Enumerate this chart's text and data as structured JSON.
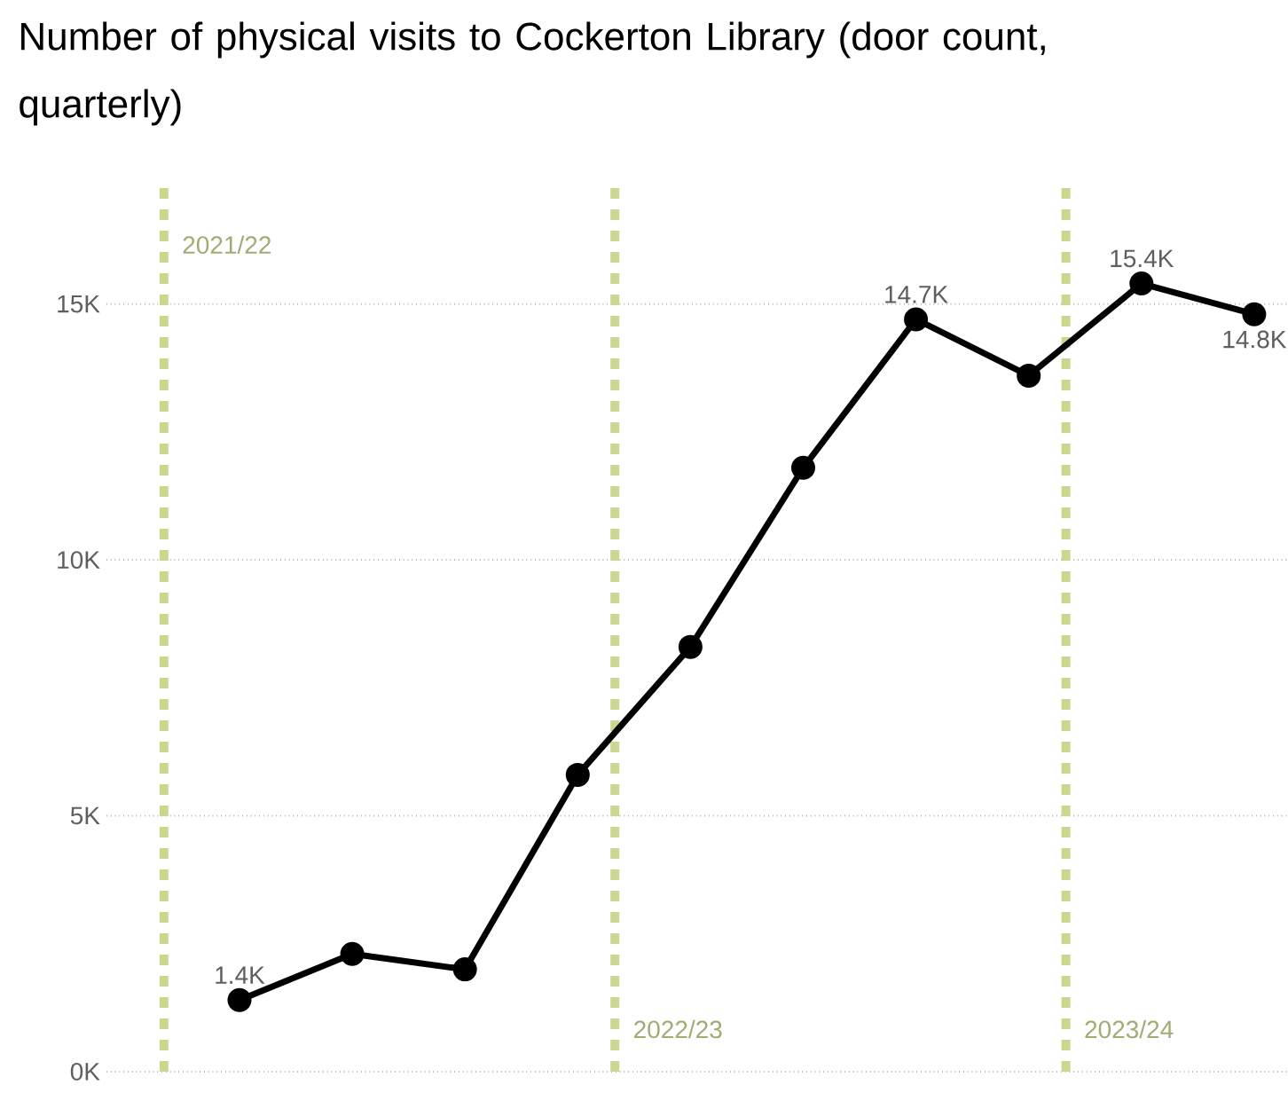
{
  "chart_data": {
    "type": "line",
    "title": "Number of physical visits to Cockerton Library (door count, quarterly)",
    "categories": [
      null,
      null,
      null,
      null,
      null,
      null,
      null,
      null,
      null,
      null
    ],
    "series": [
      {
        "color": "#000000",
        "values": [
          1.4,
          2.3,
          2.0,
          5.8,
          8.3,
          11.8,
          14.7,
          13.6,
          15.4,
          14.8
        ],
        "value_labels": [
          "1.4K",
          null,
          null,
          null,
          null,
          null,
          "14.7K",
          null,
          "15.4K",
          "14.8K"
        ]
      }
    ],
    "ylim": [
      0,
      17.3
    ],
    "yticks": [
      {
        "value": 0,
        "label": "0K"
      },
      {
        "value": 5,
        "label": "5K"
      },
      {
        "value": 10,
        "label": "10K"
      },
      {
        "value": 15,
        "label": "15K"
      }
    ],
    "grid": "y",
    "marker": "circle",
    "tick_labels": "y",
    "annotations": [
      "2021/22",
      "2022/23",
      "2023/24"
    ]
  }
}
